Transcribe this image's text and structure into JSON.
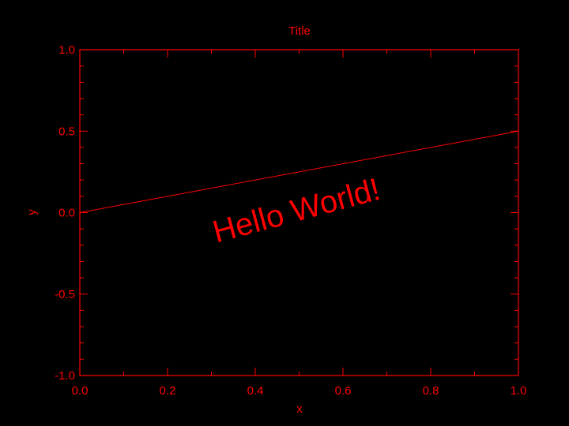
{
  "chart_data": {
    "type": "line",
    "title": "Title",
    "xlabel": "x",
    "ylabel": "y",
    "xlim": [
      0.0,
      1.0
    ],
    "ylim": [
      -1.0,
      1.0
    ],
    "x_ticks": [
      0.0,
      0.2,
      0.4,
      0.6,
      0.8,
      1.0
    ],
    "x_tick_labels": [
      "0.0",
      "0.2",
      "0.4",
      "0.6",
      "0.8",
      "1.0"
    ],
    "y_ticks": [
      -1.0,
      -0.5,
      0.0,
      0.5,
      1.0
    ],
    "y_tick_labels": [
      "-1.0",
      "-0.5",
      "0.0",
      "0.5",
      "1.0"
    ],
    "x_minor_step": 0.1,
    "y_minor_step": 0.1,
    "grid": false,
    "series": [
      {
        "x": [
          0.0,
          1.0
        ],
        "y": [
          0.0,
          0.5
        ]
      }
    ],
    "annotations": [
      {
        "text": "Hello World!",
        "x": 0.5,
        "y": -0.05,
        "rotation_deg": -15
      }
    ],
    "colors": {
      "foreground": "#ff0000",
      "background": "#000000"
    }
  }
}
